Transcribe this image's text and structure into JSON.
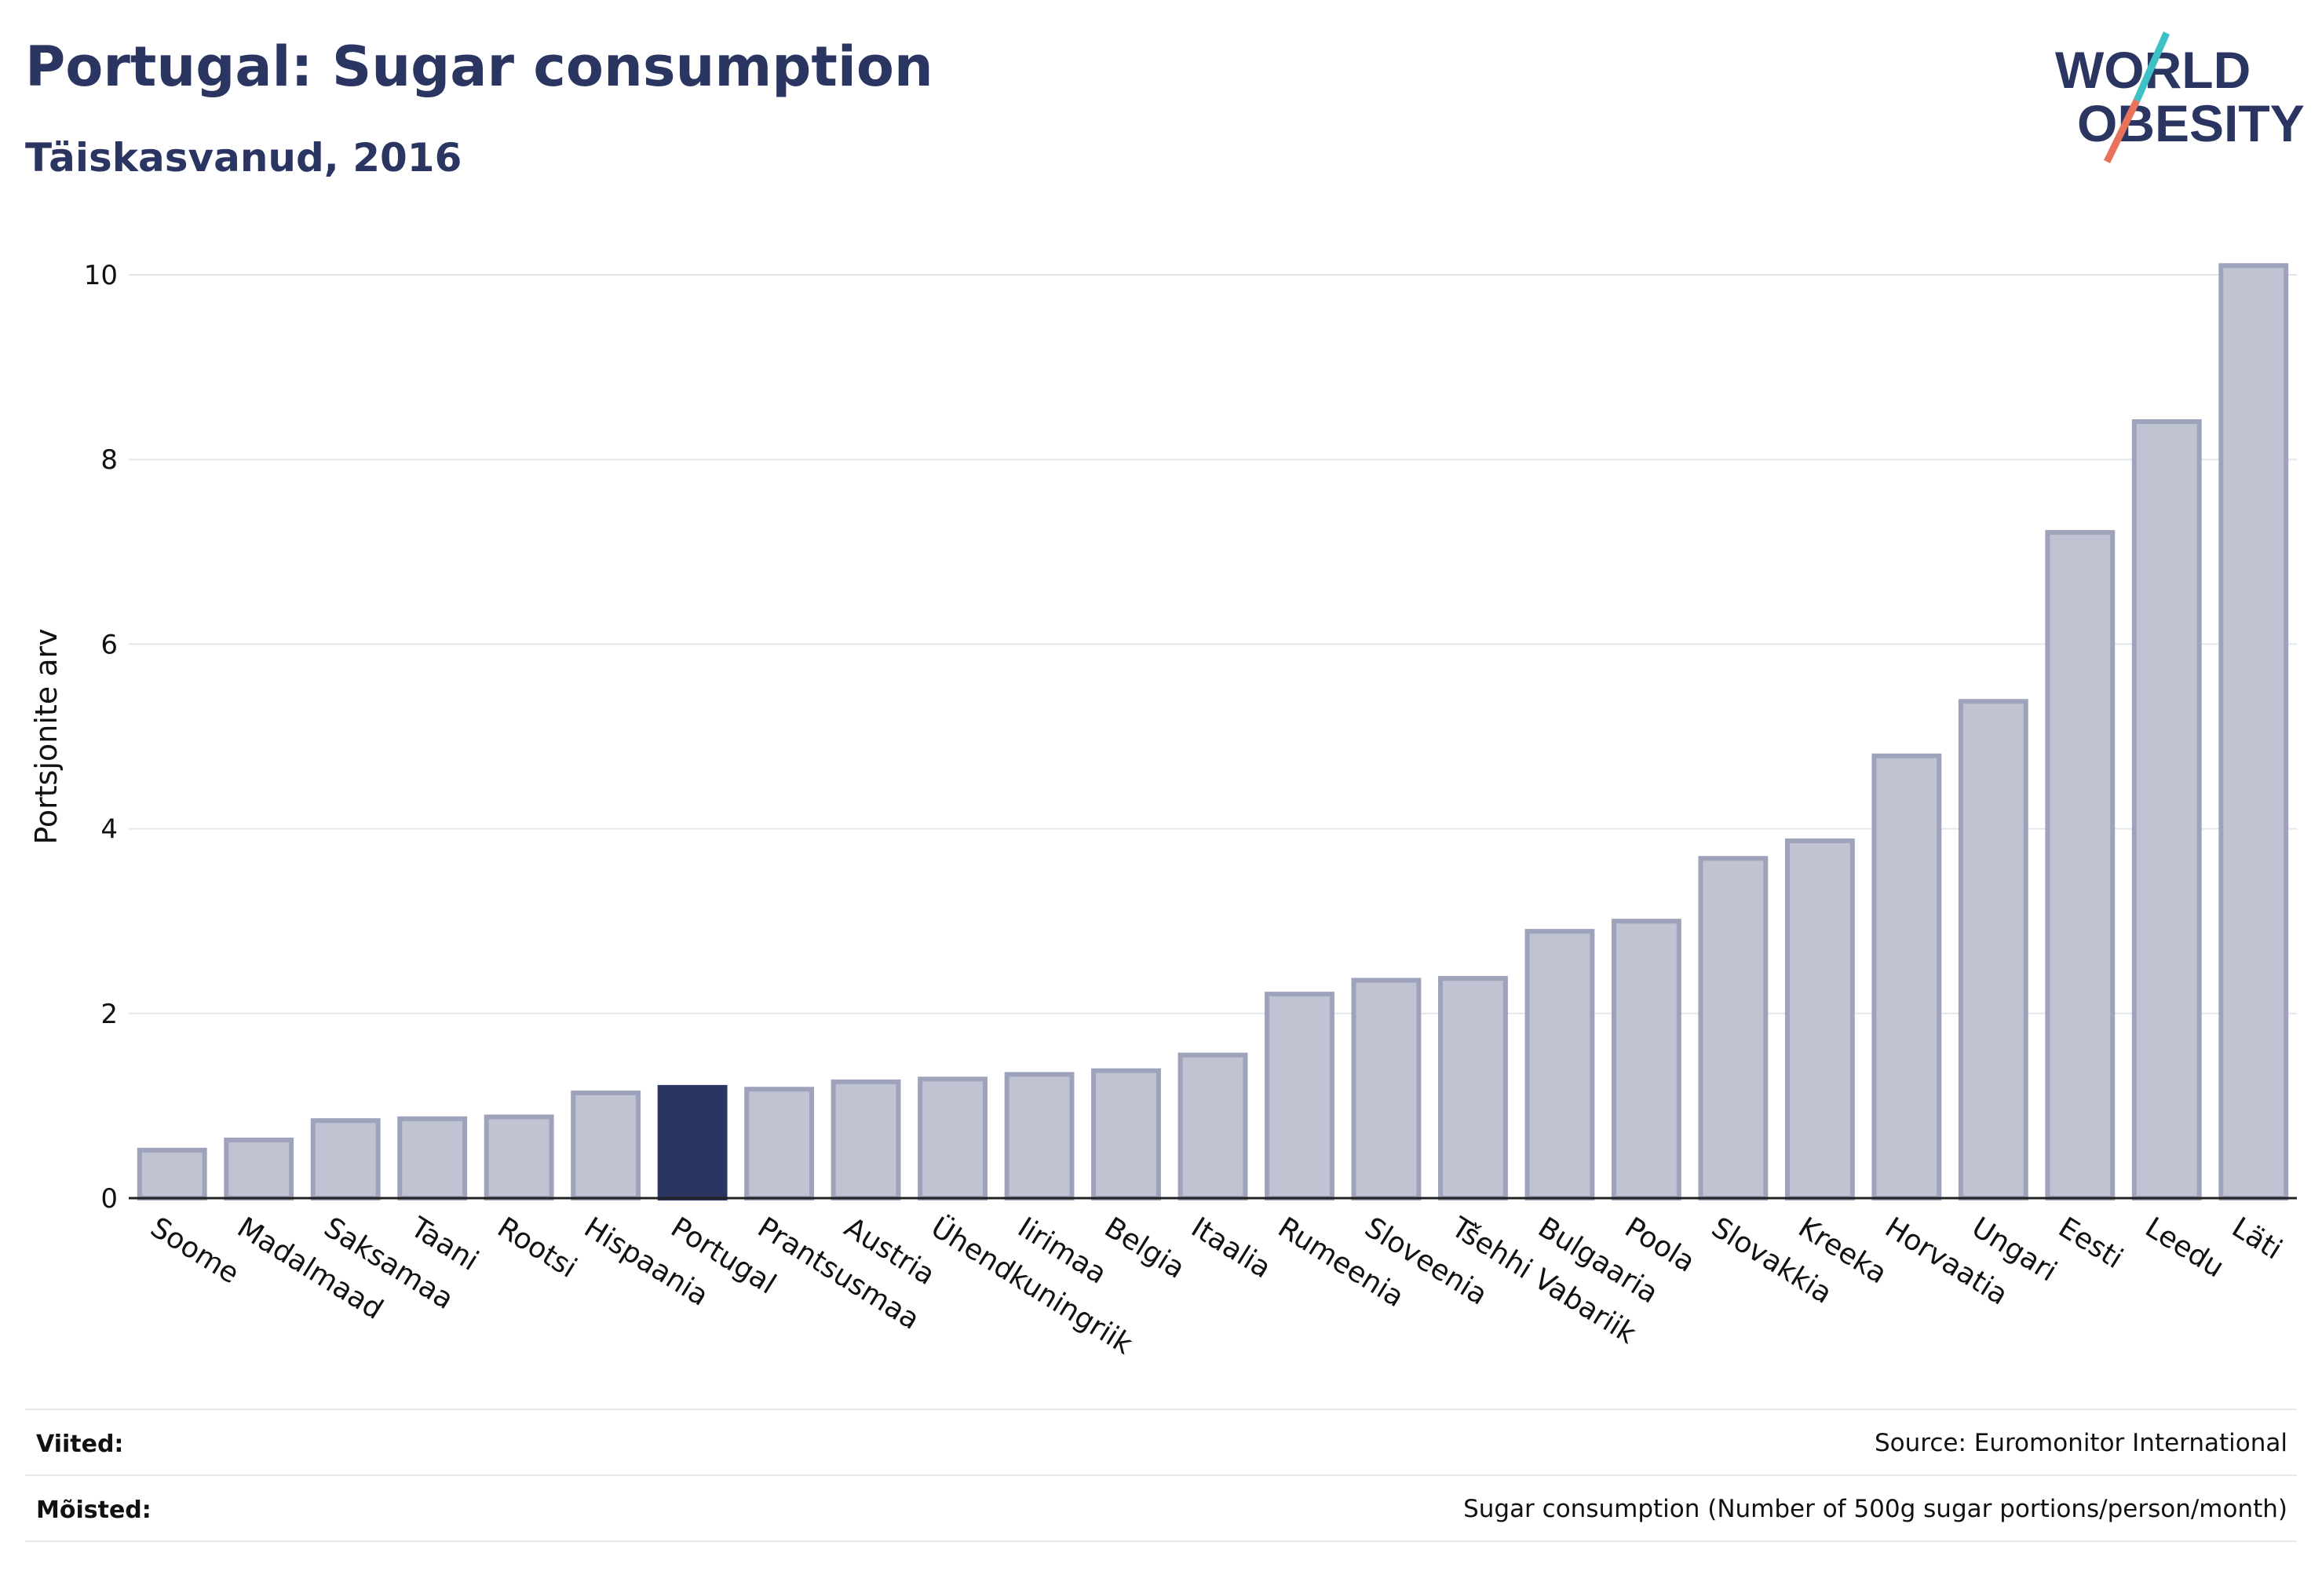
{
  "header": {
    "title": "Portugal: Sugar consumption",
    "subtitle": "Täiskasvanud, 2016"
  },
  "logo": {
    "line1": "WORLD",
    "line2": "OBESITY",
    "accent_colors": [
      "#3ec1c4",
      "#e8735a"
    ]
  },
  "colors": {
    "highlight_bar": "#2b3562",
    "bar_fill": "#bfc3d2",
    "bar_stroke": "#9ea3bb",
    "grid": "#e4e6ec",
    "axis_text": "#111111"
  },
  "chart_data": {
    "type": "bar",
    "ylabel": "Portsjonite arv",
    "xlabel": "",
    "ylim": [
      0,
      10.2
    ],
    "yticks": [
      0,
      2,
      4,
      6,
      8,
      10
    ],
    "grid": true,
    "highlight": "Portugal",
    "categories": [
      "Soome",
      "Madalmaad",
      "Saksamaa",
      "Taani",
      "Rootsi",
      "Hispaania",
      "Portugal",
      "Prantsusmaa",
      "Austria",
      "Ühendkuningriik",
      "Iirimaa",
      "Belgia",
      "Itaalia",
      "Rumeenia",
      "Sloveenia",
      "Tšehhi Vabariik",
      "Bulgaaria",
      "Poola",
      "Slovakkia",
      "Kreeka",
      "Horvaatia",
      "Ungari",
      "Eesti",
      "Leedu",
      "Läti"
    ],
    "values": [
      0.52,
      0.63,
      0.84,
      0.86,
      0.88,
      1.14,
      1.2,
      1.18,
      1.26,
      1.29,
      1.34,
      1.38,
      1.55,
      2.21,
      2.36,
      2.38,
      2.89,
      3.0,
      3.68,
      3.87,
      4.79,
      5.38,
      7.21,
      8.41,
      10.1
    ]
  },
  "footer": {
    "references_label": "Viited:",
    "references_value": "Source: Euromonitor International",
    "definitions_label": "Mõisted:",
    "definitions_value": "Sugar consumption (Number of 500g sugar portions/person/month)"
  }
}
